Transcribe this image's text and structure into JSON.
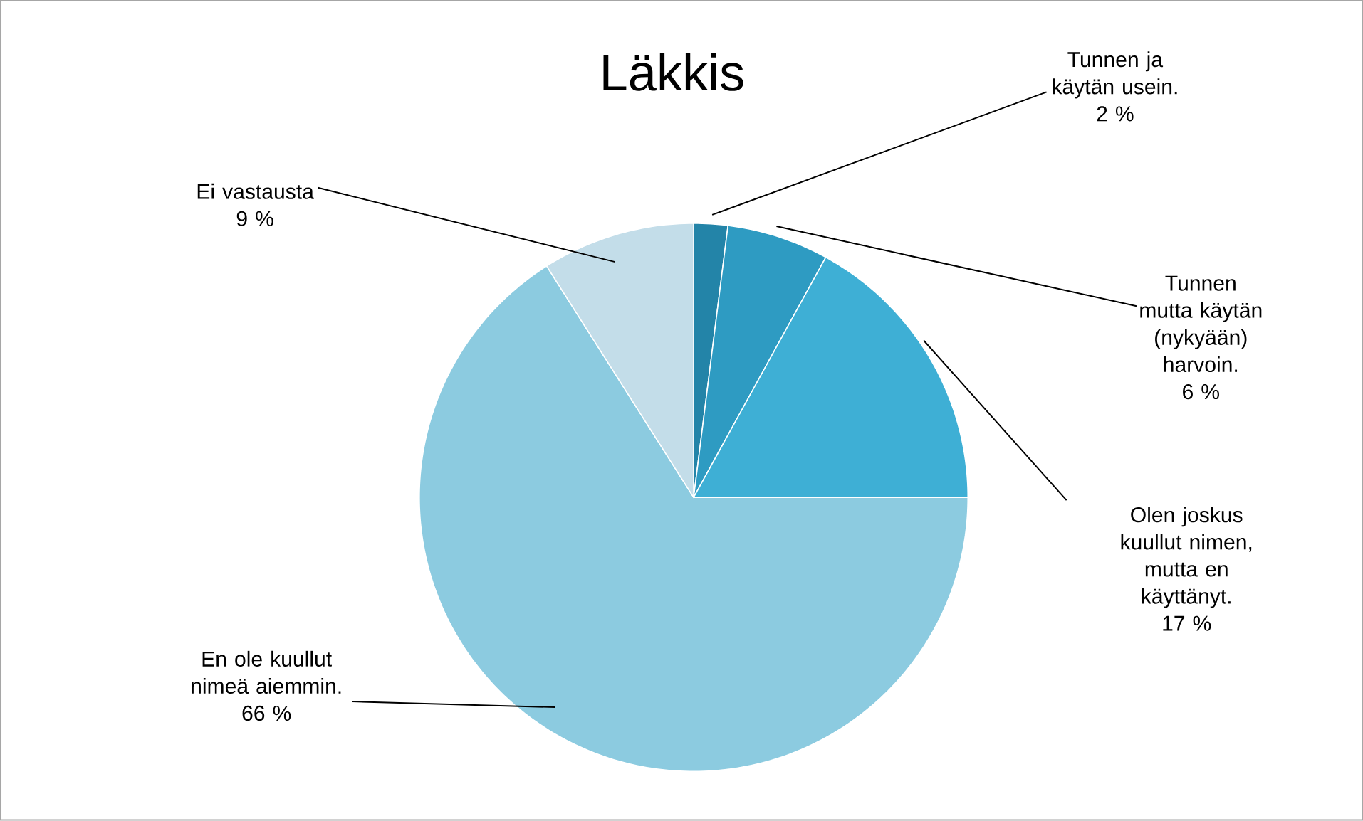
{
  "chart_data": {
    "type": "pie",
    "title": "Läkkis",
    "categories": [
      "Tunnen ja käytän usein.",
      "Tunnen mutta käytän (nykyään) harvoin.",
      "Olen joskus kuullut nimen, mutta en käyttänyt.",
      "En ole kuullut nimeä aiemmin.",
      "Ei vastausta"
    ],
    "values": [
      2,
      6,
      17,
      66,
      9
    ],
    "value_labels": [
      "2 %",
      "6 %",
      "17 %",
      "66 %",
      "9 %"
    ],
    "colors": [
      "#2384a8",
      "#2e9bc2",
      "#3eafd5",
      "#8ccbe0",
      "#c3dde9"
    ]
  }
}
